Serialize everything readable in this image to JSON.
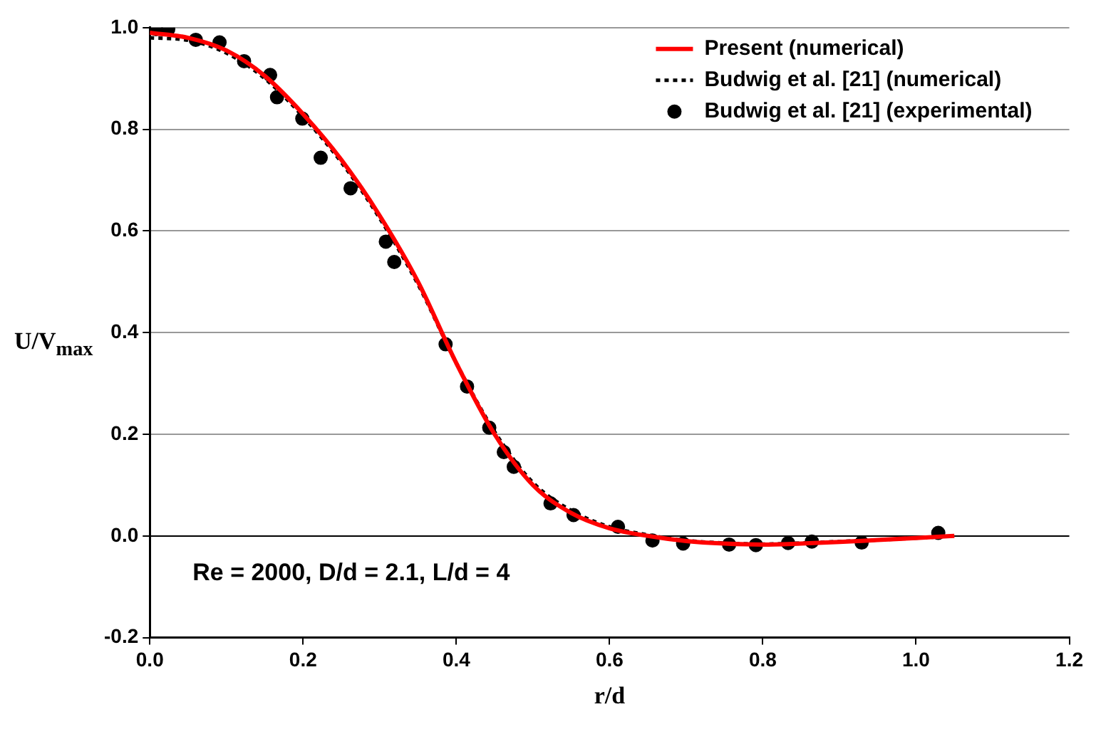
{
  "chart_data": {
    "type": "line",
    "xlabel": "r/d",
    "ylabel": "U/V$_{max}$",
    "annotations": [
      "Re = 2000, D/d = 2.1, L/d = 4"
    ],
    "series": [
      {
        "name": "Present (numerical)",
        "color": "#ff0000",
        "line_style": "solid",
        "marker": "none",
        "x": [
          0,
          0.05,
          0.1,
          0.15,
          0.2,
          0.25,
          0.3,
          0.35,
          0.4,
          0.45,
          0.5,
          0.55,
          0.6,
          0.65,
          0.7,
          0.75,
          0.8,
          0.85,
          0.9,
          0.95,
          1.0,
          1.05
        ],
        "values": [
          0.99,
          0.98,
          0.955,
          0.905,
          0.83,
          0.74,
          0.63,
          0.5,
          0.34,
          0.2,
          0.1,
          0.045,
          0.015,
          0.0,
          -0.01,
          -0.015,
          -0.017,
          -0.015,
          -0.012,
          -0.008,
          -0.004,
          0.0
        ]
      },
      {
        "name": "Budwig et al. [21] (numerical)",
        "color": "#000000",
        "line_style": "dotted",
        "marker": "none",
        "x": [
          0,
          0.05,
          0.1,
          0.15,
          0.2,
          0.25,
          0.3,
          0.35,
          0.4,
          0.45,
          0.5,
          0.55,
          0.6,
          0.65,
          0.7,
          0.75,
          0.8,
          0.85,
          0.9,
          0.95,
          1.0,
          1.03
        ],
        "values": [
          0.98,
          0.975,
          0.95,
          0.9,
          0.825,
          0.735,
          0.625,
          0.495,
          0.34,
          0.205,
          0.105,
          0.05,
          0.018,
          0.002,
          -0.009,
          -0.014,
          -0.016,
          -0.014,
          -0.011,
          -0.008,
          -0.004,
          -0.002
        ]
      },
      {
        "name": "Budwig et al. [21] (experimental)",
        "type": "scatter",
        "color": "#000000",
        "marker": "circle",
        "x": [
          0.008,
          0.024,
          0.06,
          0.091,
          0.123,
          0.157,
          0.166,
          0.199,
          0.223,
          0.262,
          0.308,
          0.319,
          0.386,
          0.414,
          0.443,
          0.462,
          0.475,
          0.523,
          0.553,
          0.611,
          0.656,
          0.696,
          0.756,
          0.791,
          0.833,
          0.864,
          0.929,
          1.029
        ],
        "values": [
          0.997,
          0.997,
          0.976,
          0.971,
          0.934,
          0.907,
          0.863,
          0.821,
          0.744,
          0.684,
          0.579,
          0.539,
          0.377,
          0.294,
          0.213,
          0.165,
          0.136,
          0.064,
          0.041,
          0.018,
          -0.009,
          -0.015,
          -0.017,
          -0.018,
          -0.014,
          -0.011,
          -0.013,
          0.006
        ]
      }
    ],
    "xlim": [
      0,
      1.2
    ],
    "xticks": [
      {
        "value": 0,
        "label": "0.0"
      },
      0.2,
      0.4,
      0.6,
      0.8,
      {
        "value": 1,
        "label": "1.0"
      },
      1.2
    ],
    "ylim": [
      -0.2,
      1.0
    ],
    "yticks": [
      -0.2,
      {
        "value": 0,
        "label": "0.0"
      },
      0.2,
      0.4,
      0.6,
      0.8,
      {
        "value": 1,
        "label": "1.0"
      }
    ],
    "grid": "y",
    "legend": "top right"
  }
}
